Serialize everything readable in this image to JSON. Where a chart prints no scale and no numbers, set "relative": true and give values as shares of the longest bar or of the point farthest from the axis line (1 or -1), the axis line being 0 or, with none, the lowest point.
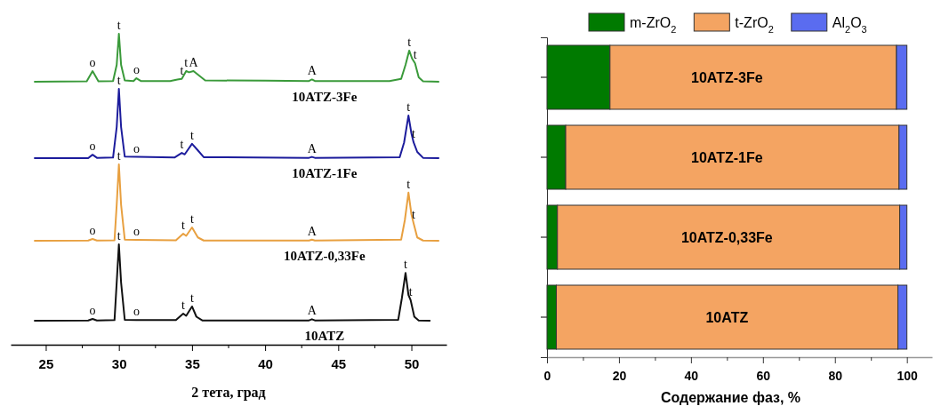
{
  "chart_data": [
    {
      "type": "line",
      "relative": true,
      "xlabel": "2 тета, град",
      "xlim": [
        22.6,
        52.4
      ],
      "xticks": [
        25,
        30,
        35,
        40,
        45,
        50
      ],
      "series": [
        {
          "name": "10ATZ-3Fe",
          "color": "#3a9a3a",
          "x": [
            24.2,
            27.8,
            28.2,
            28.6,
            29.6,
            29.85,
            30.0,
            30.15,
            30.4,
            31.0,
            31.2,
            31.5,
            33.5,
            34.0,
            34.3,
            34.6,
            34.8,
            35.1,
            35.5,
            35.9,
            40,
            43.0,
            43.2,
            43.4,
            48.5,
            49.3,
            49.6,
            49.85,
            50.05,
            50.25,
            50.5,
            50.8,
            51.9
          ],
          "values": [
            0.846,
            0.847,
            0.88,
            0.847,
            0.848,
            0.9,
            1.0,
            0.9,
            0.85,
            0.848,
            0.857,
            0.848,
            0.848,
            0.853,
            0.855,
            0.88,
            0.876,
            0.88,
            0.865,
            0.85,
            0.849,
            0.848,
            0.853,
            0.848,
            0.848,
            0.855,
            0.9,
            0.946,
            0.92,
            0.905,
            0.86,
            0.847,
            0.846
          ]
        },
        {
          "name": "10ATZ-1Fe",
          "color": "#1c1c9c",
          "x": [
            24.2,
            27.9,
            28.2,
            28.5,
            29.6,
            29.85,
            30.0,
            30.15,
            30.4,
            31.2,
            33.8,
            34.3,
            34.5,
            35.0,
            35.4,
            35.8,
            43.0,
            43.2,
            43.4,
            49.2,
            49.5,
            49.8,
            50.0,
            50.15,
            50.4,
            50.8,
            51.9
          ],
          "values": [
            0.6,
            0.6,
            0.611,
            0.601,
            0.602,
            0.7,
            0.823,
            0.7,
            0.605,
            0.604,
            0.602,
            0.617,
            0.612,
            0.646,
            0.625,
            0.603,
            0.601,
            0.604,
            0.601,
            0.603,
            0.65,
            0.737,
            0.68,
            0.651,
            0.62,
            0.601,
            0.6
          ]
        },
        {
          "name": "10ATZ-0,33Fe",
          "color": "#e8a040",
          "x": [
            24.2,
            27.9,
            28.2,
            28.5,
            29.7,
            29.85,
            30.0,
            30.15,
            30.4,
            31.2,
            33.9,
            34.4,
            34.6,
            35.0,
            35.4,
            35.8,
            43.0,
            43.2,
            43.4,
            49.3,
            49.55,
            49.8,
            50.0,
            50.15,
            50.4,
            50.8,
            51.9
          ],
          "values": [
            0.334,
            0.335,
            0.34,
            0.335,
            0.336,
            0.45,
            0.58,
            0.45,
            0.338,
            0.337,
            0.336,
            0.357,
            0.35,
            0.377,
            0.345,
            0.335,
            0.335,
            0.338,
            0.335,
            0.338,
            0.4,
            0.489,
            0.42,
            0.391,
            0.345,
            0.335,
            0.334
          ]
        },
        {
          "name": "10ATZ",
          "color": "#111111",
          "x": [
            24.2,
            27.9,
            28.2,
            28.5,
            29.7,
            29.85,
            30.0,
            30.15,
            30.4,
            31.2,
            33.9,
            34.4,
            34.6,
            35.0,
            35.3,
            35.7,
            43.0,
            43.2,
            43.4,
            49.1,
            49.35,
            49.6,
            49.8,
            49.95,
            50.2,
            50.5,
            51.3
          ],
          "values": [
            0.077,
            0.078,
            0.083,
            0.078,
            0.079,
            0.2,
            0.323,
            0.2,
            0.08,
            0.079,
            0.079,
            0.1,
            0.093,
            0.123,
            0.09,
            0.078,
            0.078,
            0.082,
            0.078,
            0.08,
            0.15,
            0.231,
            0.16,
            0.143,
            0.09,
            0.078,
            0.077
          ]
        }
      ],
      "annotations": [
        {
          "text": "o",
          "x": 28.2,
          "y": 0.88
        },
        {
          "text": "t",
          "x": 30.0,
          "y": 1.0
        },
        {
          "text": "o",
          "x": 31.2,
          "y": 0.857
        },
        {
          "text": "t",
          "x": 34.3,
          "y": 0.855
        },
        {
          "text": "t",
          "x": 34.6,
          "y": 0.88
        },
        {
          "text": "A",
          "x": 35.1,
          "y": 0.88
        },
        {
          "text": "A",
          "x": 43.2,
          "y": 0.853
        },
        {
          "text": "t",
          "x": 49.85,
          "y": 0.946
        },
        {
          "text": "t",
          "x": 50.25,
          "y": 0.905
        },
        {
          "text": "o",
          "x": 28.2,
          "y": 0.611
        },
        {
          "text": "t",
          "x": 30.0,
          "y": 0.823
        },
        {
          "text": "o",
          "x": 31.2,
          "y": 0.604
        },
        {
          "text": "t",
          "x": 34.3,
          "y": 0.617
        },
        {
          "text": "t",
          "x": 35.0,
          "y": 0.646
        },
        {
          "text": "A",
          "x": 43.2,
          "y": 0.604
        },
        {
          "text": "t",
          "x": 49.8,
          "y": 0.737
        },
        {
          "text": "t",
          "x": 50.15,
          "y": 0.651
        },
        {
          "text": "o",
          "x": 28.2,
          "y": 0.34
        },
        {
          "text": "t",
          "x": 30.0,
          "y": 0.58
        },
        {
          "text": "o",
          "x": 31.2,
          "y": 0.337
        },
        {
          "text": "t",
          "x": 34.4,
          "y": 0.357
        },
        {
          "text": "t",
          "x": 35.0,
          "y": 0.377
        },
        {
          "text": "A",
          "x": 43.2,
          "y": 0.338
        },
        {
          "text": "t",
          "x": 49.8,
          "y": 0.489
        },
        {
          "text": "t",
          "x": 50.15,
          "y": 0.391
        },
        {
          "text": "o",
          "x": 28.2,
          "y": 0.083
        },
        {
          "text": "t",
          "x": 30.0,
          "y": 0.323
        },
        {
          "text": "o",
          "x": 31.2,
          "y": 0.079
        },
        {
          "text": "t",
          "x": 34.4,
          "y": 0.1
        },
        {
          "text": "t",
          "x": 35.0,
          "y": 0.123
        },
        {
          "text": "A",
          "x": 43.2,
          "y": 0.082
        },
        {
          "text": "t",
          "x": 49.6,
          "y": 0.231
        },
        {
          "text": "t",
          "x": 49.95,
          "y": 0.143
        }
      ]
    },
    {
      "type": "bar",
      "orientation": "horizontal",
      "stacked": true,
      "xlabel": "Содержание фаз, %",
      "legend": "top",
      "categories": [
        "10ATZ-3Fe",
        "10ATZ-1Fe",
        "10ATZ-0,33Fe",
        "10ATZ"
      ],
      "xlim": [
        0,
        107
      ],
      "xticks": [
        0,
        {
          "value": 10,
          "label": null
        },
        20,
        {
          "value": 30,
          "label": null
        },
        40,
        {
          "value": 50,
          "label": null
        },
        60,
        {
          "value": 70,
          "label": null
        },
        80,
        {
          "value": 90,
          "label": null
        },
        100
      ],
      "series": [
        {
          "name": "m-ZrO$_{2}$",
          "color": "#007a00",
          "values": [
            17.5,
            5.2,
            2.9,
            2.6
          ]
        },
        {
          "name": "t-ZrO$_{2}$",
          "color": "#f4a462",
          "values": [
            79.6,
            92.6,
            95.1,
            94.9
          ]
        },
        {
          "name": "Al$_{2}$O$_{3}$",
          "color": "#5a6cf0",
          "values": [
            2.9,
            2.2,
            2.0,
            2.5
          ]
        }
      ]
    }
  ]
}
